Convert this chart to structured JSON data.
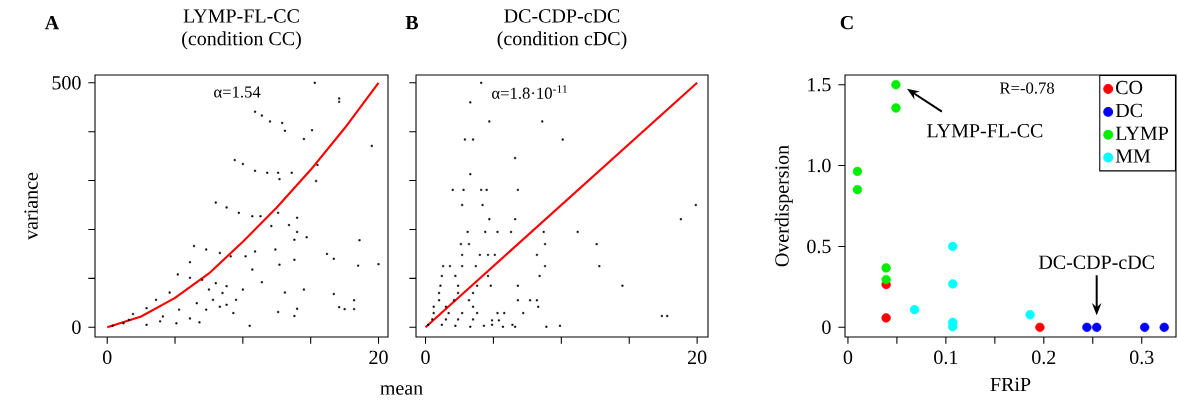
{
  "chart_data": [
    {
      "type": "scatter",
      "title": "LYMP-FL-CC",
      "subtitle": "(condition CC)",
      "xlabel": "mean",
      "ylabel": "variance",
      "xlim": [
        -0.9,
        20.7
      ],
      "ylim": [
        -20,
        516
      ],
      "xticks": [
        0,
        {
          "value": 5,
          "label": null
        },
        {
          "value": 10,
          "label": null
        },
        {
          "value": 15,
          "label": null
        },
        20
      ],
      "yticks": [
        0,
        {
          "value": 100,
          "label": null
        },
        {
          "value": 200,
          "label": null
        },
        {
          "value": 300,
          "label": null
        },
        {
          "value": 400,
          "label": null
        },
        500
      ],
      "annotations": [
        "A",
        "α=1.54"
      ],
      "series": [
        {
          "type": "scatter",
          "color": "#000000",
          "marker": "square",
          "x": [
            15.3,
            17.1,
            17.1,
            10.9,
            11.4,
            12.0,
            12.9,
            13.1,
            15.1,
            14.5,
            19.5,
            9.4,
            10.0,
            10.9,
            11.8,
            12.6,
            12.7,
            13.6,
            15.4,
            15.5,
            8.0,
            8.8,
            9.7,
            10.7,
            11.3,
            12.6,
            12.1,
            14.0,
            13.4,
            14.7,
            14.0,
            13.8,
            6.4,
            7.3,
            8.3,
            9.1,
            10.2,
            10.9,
            12.4,
            12.7,
            13.8,
            16.2,
            16.7,
            18.6,
            18.5,
            20.0,
            6.1,
            10.7,
            5.2,
            6.1,
            7.0,
            8.0,
            8.8,
            10.0,
            11.4,
            13.1,
            14.5,
            16.7,
            18.2,
            17.1,
            17.5,
            18.2,
            14.0,
            13.8,
            12.6,
            10.5,
            6.8,
            3.6,
            4.6,
            2.9,
            1.9,
            4.1,
            5.3,
            6.6,
            7.8,
            8.3,
            9.3,
            5.1,
            1.2,
            0.4,
            2.9,
            1.6,
            3.9,
            6.1,
            7.3,
            8.8,
            9.5,
            8.5,
            7.5
          ],
          "values": [
            500,
            468,
            461,
            441,
            433,
            421,
            418,
            402,
            403,
            385,
            371,
            342,
            334,
            320,
            316,
            316,
            303,
            316,
            299,
            332,
            255,
            245,
            234,
            227,
            227,
            234,
            207,
            224,
            209,
            184,
            195,
            179,
            166,
            159,
            152,
            145,
            145,
            155,
            159,
            128,
            138,
            150,
            140,
            178,
            126,
            129,
            133,
            118,
            108,
            101,
            97,
            90,
            84,
            77,
            92,
            71,
            77,
            68,
            55,
            41,
            37,
            37,
            38,
            23,
            31,
            3,
            10,
            56,
            71,
            39,
            27,
            22,
            36,
            49,
            56,
            42,
            29,
            8,
            8,
            3,
            5,
            15,
            12,
            18,
            36,
            46,
            56,
            70,
            77
          ]
        },
        {
          "type": "line",
          "color": "#ff0000",
          "x": [
            0,
            2.5,
            5,
            7.5,
            10,
            12.5,
            15,
            17.5,
            20
          ],
          "values": [
            0,
            22,
            60,
            110,
            175,
            245,
            322,
            407,
            500
          ]
        }
      ]
    },
    {
      "type": "scatter",
      "title": "DC-CDP-cDC",
      "subtitle": "(condition cDC)",
      "xlim": [
        -0.7,
        20.8
      ],
      "ylim": [
        -20,
        516
      ],
      "tick_labels": "x",
      "xticks": [
        0,
        {
          "value": 5,
          "label": null
        },
        {
          "value": 10,
          "label": null
        },
        {
          "value": 15,
          "label": null
        },
        20
      ],
      "yticks": [
        0,
        {
          "value": 100,
          "label": null
        },
        {
          "value": 200,
          "label": null
        },
        {
          "value": 300,
          "label": null
        },
        {
          "value": 400,
          "label": null
        },
        500
      ],
      "annotations": [
        "B",
        "α=1.8·10$^{-11}$"
      ],
      "series": [
        {
          "type": "scatter",
          "color": "#000000",
          "marker": "square",
          "x": [
            4.1,
            3.3,
            4.7,
            8.6,
            2.9,
            3.5,
            10.1,
            6.6,
            3.3,
            2.0,
            2.8,
            4.1,
            4.5,
            6.8,
            2.7,
            4.2,
            4.7,
            6.6,
            18.8,
            19.9,
            3.1,
            4.4,
            5.3,
            6.3,
            8.7,
            11.2,
            2.6,
            3.2,
            8.8,
            12.6,
            2.7,
            4.0,
            4.6,
            5.1,
            8.2,
            1.3,
            1.8,
            2.7,
            3.7,
            8.8,
            12.8,
            1.2,
            2.2,
            4.6,
            8.4,
            1.1,
            2.4,
            3.8,
            4.8,
            6.8,
            14.5,
            1.0,
            2.4,
            3.5,
            1.0,
            2.1,
            3.2,
            6.8,
            7.7,
            8.2,
            0.6,
            1.5,
            3.5,
            8.3,
            0.6,
            1.7,
            2.7,
            3.8,
            5.3,
            5.8,
            7.2,
            0.5,
            1.5,
            2.4,
            3.5,
            4.9,
            5.4,
            17.4,
            17.8,
            0.2,
            1.2,
            2.2,
            3.3,
            4.3,
            4.9,
            5.7,
            6.4,
            6.6,
            8.9,
            9.9
          ],
          "values": [
            500,
            460,
            421,
            421,
            384,
            384,
            384,
            346,
            313,
            281,
            281,
            281,
            281,
            281,
            250,
            250,
            221,
            221,
            221,
            250,
            195,
            195,
            195,
            195,
            195,
            195,
            170,
            170,
            170,
            170,
            148,
            148,
            148,
            148,
            148,
            125,
            125,
            125,
            125,
            125,
            125,
            105,
            105,
            105,
            105,
            85,
            85,
            85,
            85,
            85,
            85,
            70,
            70,
            70,
            55,
            55,
            55,
            55,
            55,
            55,
            42,
            42,
            42,
            42,
            29,
            29,
            29,
            29,
            29,
            29,
            29,
            16,
            16,
            16,
            16,
            14,
            14,
            23,
            23,
            5,
            5,
            3,
            1,
            3,
            5,
            1,
            5,
            1,
            1,
            3
          ]
        },
        {
          "type": "line",
          "color": "#ff0000",
          "x": [
            0,
            20
          ],
          "values": [
            0,
            500
          ]
        }
      ]
    },
    {
      "type": "scatter",
      "xlabel": "FRiP",
      "ylabel": "Overdispersion",
      "legend": "top right",
      "marker": "circle",
      "xlim": [
        -0.003,
        0.335
      ],
      "ylim": [
        -0.06,
        1.56
      ],
      "xticks": [
        0,
        {
          "value": 0.05,
          "label": null
        },
        0.1,
        {
          "value": 0.15,
          "label": null
        },
        0.2,
        {
          "value": 0.25,
          "label": null
        },
        0.3
      ],
      "yticks": [
        0,
        0.5,
        {
          "value": 1,
          "label": "1.0"
        },
        1.5
      ],
      "annotations": [
        "C",
        "R=-0.78",
        {
          "text": "LYMP-FL-CC",
          "x": 0.049,
          "y": 1.5
        },
        {
          "text": "DC-CDP-cDC",
          "x": 0.254,
          "y": 0
        }
      ],
      "series": [
        {
          "name": "CO",
          "color": "#ff0000",
          "x": [
            0.039,
            0.039,
            0.196
          ],
          "values": [
            0.264,
            0.058,
            0
          ]
        },
        {
          "name": "DC",
          "color": "#0000ff",
          "x": [
            0.244,
            0.254,
            0.303,
            0.323
          ],
          "values": [
            0,
            0,
            0,
            0
          ]
        },
        {
          "name": "LYMP",
          "color": "#00ee00",
          "x": [
            0.049,
            0.049,
            0.0097,
            0.0097,
            0.039,
            0.039
          ],
          "values": [
            1.5,
            1.356,
            0.964,
            0.851,
            0.367,
            0.295
          ]
        },
        {
          "name": "MM",
          "color": "#00ffff",
          "x": [
            0.068,
            0.107,
            0.107,
            0.107,
            0.107,
            0.186
          ],
          "values": [
            0.109,
            0.5,
            0.268,
            0.031,
            0.004,
            0.078
          ]
        }
      ]
    }
  ]
}
